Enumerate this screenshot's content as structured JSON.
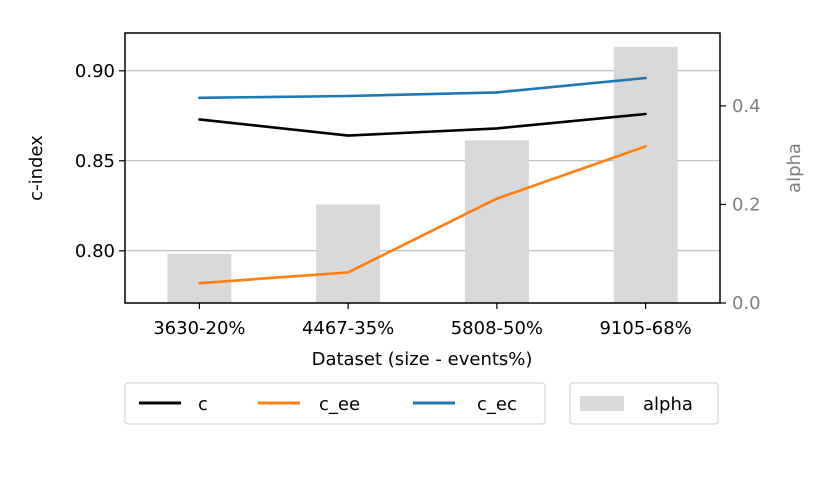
{
  "chart_data": {
    "type": "line",
    "categories": [
      "3630-20%",
      "4467-35%",
      "5808-50%",
      "9105-68%"
    ],
    "xlabel": "Dataset (size - events%)",
    "ylabel": "c-index",
    "ylabel_right": "alpha",
    "ylim": [
      0.771,
      0.921
    ],
    "ylim_right": [
      0.0,
      0.548
    ],
    "yticks": [
      "0.80",
      "0.85",
      "0.90"
    ],
    "yticks_right": [
      "0.0",
      "0.2",
      "0.4"
    ],
    "grid": true,
    "legend_placement": "bottom-center",
    "series": [
      {
        "name": "c",
        "color": "#000000",
        "values": [
          0.873,
          0.864,
          0.868,
          0.876
        ]
      },
      {
        "name": "c_ee",
        "color": "#ff7f0e",
        "values": [
          0.782,
          0.788,
          0.829,
          0.858
        ]
      },
      {
        "name": "c_ec",
        "color": "#1f77b4",
        "values": [
          0.885,
          0.886,
          0.888,
          0.896
        ]
      }
    ],
    "bars": {
      "name": "alpha",
      "color": "#d9d9d9",
      "axis": "right",
      "values": [
        0.1,
        0.2,
        0.33,
        0.52
      ]
    }
  }
}
